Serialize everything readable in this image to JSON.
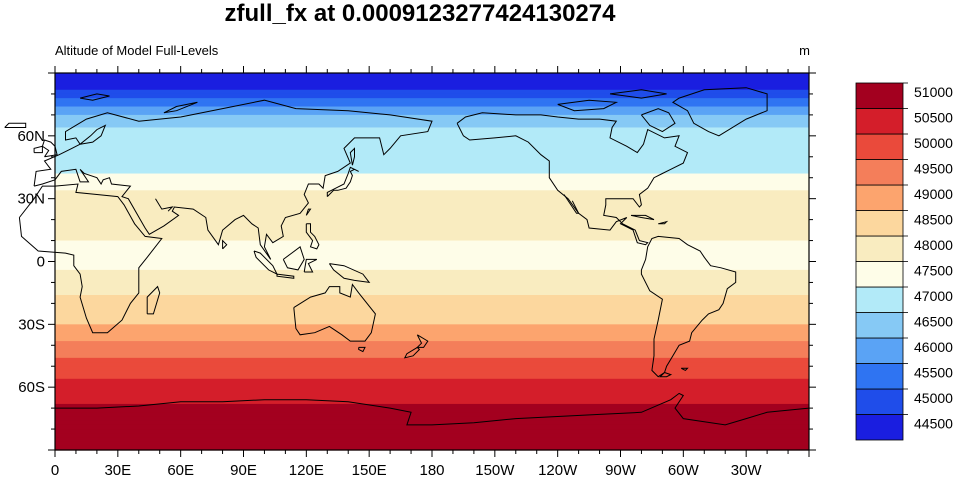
{
  "chart_data": {
    "type": "heatmap",
    "title": "zfull_fx at 0.0009123277424130274",
    "left_subtitle": "Altitude of Model Full-Levels",
    "units": "m",
    "x_ticks": [
      {
        "lon": 0,
        "label": "0"
      },
      {
        "lon": 30,
        "label": "30E"
      },
      {
        "lon": 60,
        "label": "60E"
      },
      {
        "lon": 90,
        "label": "90E"
      },
      {
        "lon": 120,
        "label": "120E"
      },
      {
        "lon": 150,
        "label": "150E"
      },
      {
        "lon": 180,
        "label": "180"
      },
      {
        "lon": 210,
        "label": "150W"
      },
      {
        "lon": 240,
        "label": "120W"
      },
      {
        "lon": 270,
        "label": "90W"
      },
      {
        "lon": 300,
        "label": "60W"
      },
      {
        "lon": 330,
        "label": "30W"
      }
    ],
    "y_ticks": [
      {
        "lat": 60,
        "label": "60N"
      },
      {
        "lat": 30,
        "label": "30N"
      },
      {
        "lat": 0,
        "label": "0"
      },
      {
        "lat": -30,
        "label": "30S"
      },
      {
        "lat": -60,
        "label": "60S"
      }
    ],
    "xlim": [
      0,
      360
    ],
    "ylim": [
      -90,
      90
    ],
    "colorbar": {
      "levels": [
        44500,
        45000,
        45500,
        46000,
        46500,
        47000,
        47500,
        48000,
        48500,
        49000,
        49500,
        50000,
        50500,
        51000
      ],
      "labels": [
        "44500",
        "45000",
        "45500",
        "46000",
        "46500",
        "47000",
        "47500",
        "48000",
        "48500",
        "49000",
        "49500",
        "50000",
        "50500",
        "51000"
      ],
      "colors": [
        "#1a1ee0",
        "#1f4dea",
        "#2f74f2",
        "#5aa3f5",
        "#86c9f5",
        "#b2eaf8",
        "#fefde8",
        "#f9ecc0",
        "#fcd79e",
        "#fca46e",
        "#f47e5a",
        "#ea4a3b",
        "#d41e2a",
        "#a3001f"
      ]
    },
    "zonal_profile": [
      {
        "lat": 90,
        "value": 44250
      },
      {
        "lat": 84,
        "value": 44600
      },
      {
        "lat": 80,
        "value": 45200
      },
      {
        "lat": 76,
        "value": 45700
      },
      {
        "lat": 72,
        "value": 46200
      },
      {
        "lat": 68,
        "value": 46700
      },
      {
        "lat": 62,
        "value": 47200
      },
      {
        "lat": 54,
        "value": 47500
      },
      {
        "lat": 46,
        "value": 47300
      },
      {
        "lat": 38,
        "value": 47700
      },
      {
        "lat": 30,
        "value": 48200
      },
      {
        "lat": 20,
        "value": 48300
      },
      {
        "lat": 10,
        "value": 48000
      },
      {
        "lat": 0,
        "value": 47800
      },
      {
        "lat": -10,
        "value": 48200
      },
      {
        "lat": -18,
        "value": 48600
      },
      {
        "lat": -24,
        "value": 48700
      },
      {
        "lat": -30,
        "value": 49000
      },
      {
        "lat": -36,
        "value": 49300
      },
      {
        "lat": -42,
        "value": 49700
      },
      {
        "lat": -48,
        "value": 50100
      },
      {
        "lat": -54,
        "value": 50400
      },
      {
        "lat": -60,
        "value": 50700
      },
      {
        "lat": -66,
        "value": 50900
      },
      {
        "lat": -72,
        "value": 51100
      },
      {
        "lat": -80,
        "value": 51300
      },
      {
        "lat": -90,
        "value": 51400
      }
    ]
  }
}
